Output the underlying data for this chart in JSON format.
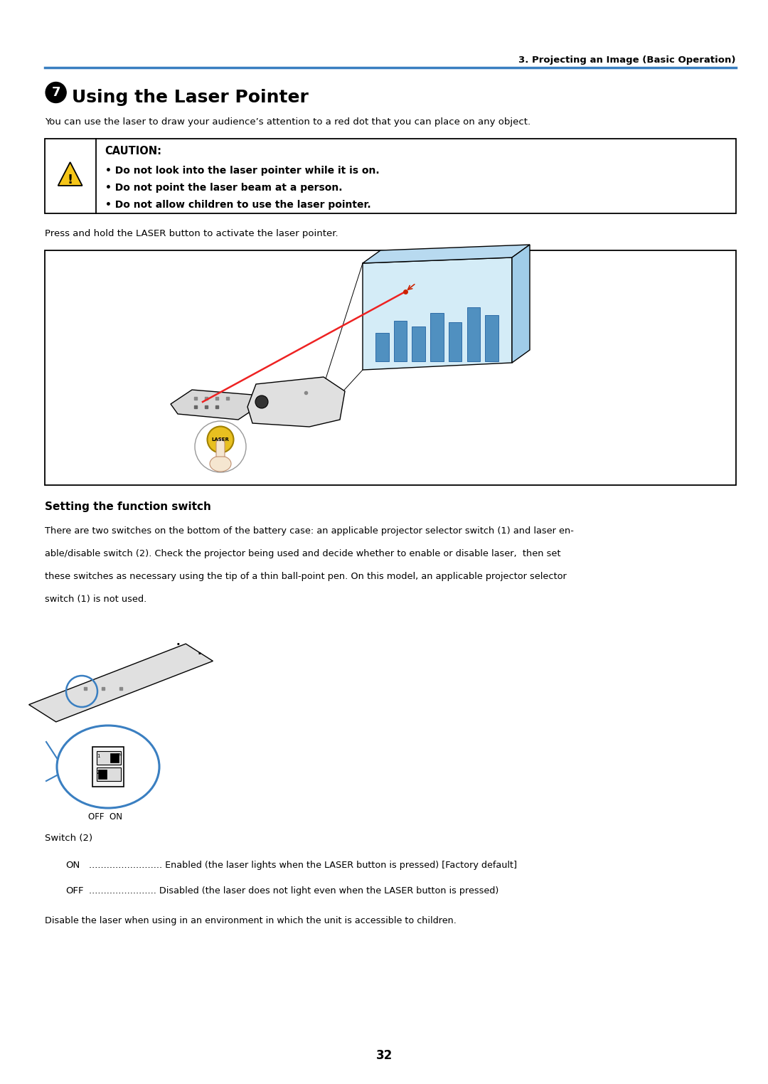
{
  "bg_color": "#ffffff",
  "page_width": 10.8,
  "page_height": 15.24,
  "dpi": 100,
  "header_text": "3. Projecting an Image (Basic Operation)",
  "header_line_color": "#3a7fc1",
  "section_number": "7",
  "section_title": "Using the Laser Pointer",
  "intro_text": "You can use the laser to draw your audience’s attention to a red dot that you can place on any object.",
  "caution_title": "CAUTION:",
  "caution_lines": [
    "• Do not look into the laser pointer while it is on.",
    "• Do not point the laser beam at a person.",
    "• Do not allow children to use the laser pointer."
  ],
  "laser_press_text": "Press and hold the LASER button to activate the laser pointer.",
  "setting_title": "Setting the function switch",
  "setting_body_lines": [
    "There are two switches on the bottom of the battery case: an applicable projector selector switch (1) and laser en-",
    "able/disable switch (2). Check the projector being used and decide whether to enable or disable laser,  then set",
    "these switches as necessary using the tip of a thin ball-point pen. On this model, an applicable projector selector",
    "switch (1) is not used."
  ],
  "switch_label": "Switch (2)",
  "on_label": "ON",
  "on_dots": ".........................",
  "on_desc": "Enabled (the laser lights when the LASER button is pressed) [Factory default]",
  "off_label": "OFF",
  "off_dots": ".......................",
  "off_desc": "Disabled (the laser does not light even when the LASER button is pressed)",
  "disable_text": "Disable the laser when using in an environment in which the unit is accessible to children.",
  "page_number": "32",
  "accent_color": "#3a7fc1",
  "lm": 0.058,
  "rm": 0.958
}
